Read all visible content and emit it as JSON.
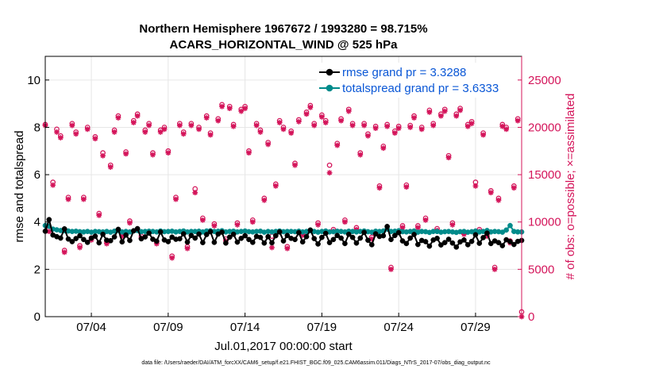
{
  "chart_data": {
    "type": "line",
    "title": "Northern Hemisphere 1967672 / 1993280 = 98.715%",
    "subtitle": "ACARS_HORIZONTAL_WIND @ 525 hPa",
    "xlabel": "Jul.01,2017 00:00:00 start",
    "ylabel": "rmse and totalspread",
    "ylabel_right": "# of obs: o=possible; ×=assimilated",
    "footnote": "data file: /Users/raeder/DAI/ATM_forcXX/CAM6_setup/f.e21.FHIST_BGC.f09_025.CAM6assim.011/Diags_NTrS_2017-07/obs_diag_output.nc",
    "xlim": [
      1,
      32
    ],
    "ylim": [
      0,
      11
    ],
    "ylim_right": [
      0,
      27500
    ],
    "xticks": [
      {
        "x": 4,
        "label": "07/04"
      },
      {
        "x": 9,
        "label": "07/09"
      },
      {
        "x": 14,
        "label": "07/14"
      },
      {
        "x": 19,
        "label": "07/19"
      },
      {
        "x": 24,
        "label": "07/24"
      },
      {
        "x": 29,
        "label": "07/29"
      }
    ],
    "yticks": [
      0,
      2,
      4,
      6,
      8,
      10
    ],
    "yticks_right": [
      0,
      5000,
      10000,
      15000,
      20000,
      25000
    ],
    "colors": {
      "rmse": "#000000",
      "spread": "#008b8b",
      "obs": "#d4145a",
      "legend_text": "#0a57d6",
      "axis": "#000000"
    },
    "legend": [
      {
        "key": "rmse",
        "label": "rmse grand pr = 3.3288"
      },
      {
        "key": "spread",
        "label": "totalspread grand pr = 3.6333"
      }
    ],
    "obs_x": [
      1.0,
      1.25,
      1.5,
      1.75,
      2.0,
      2.25,
      2.5,
      2.75,
      3.0,
      3.25,
      3.5,
      3.75,
      4.0,
      4.25,
      4.5,
      4.75,
      5.0,
      5.25,
      5.5,
      5.75,
      6.0,
      6.25,
      6.5,
      6.75,
      7.0,
      7.25,
      7.5,
      7.75,
      8.0,
      8.25,
      8.5,
      8.75,
      9.0,
      9.25,
      9.5,
      9.75,
      10.0,
      10.25,
      10.5,
      10.75,
      11.0,
      11.25,
      11.5,
      11.75,
      12.0,
      12.25,
      12.5,
      12.75,
      13.0,
      13.25,
      13.5,
      13.75,
      14.0,
      14.25,
      14.5,
      14.75,
      15.0,
      15.25,
      15.5,
      15.75,
      16.0,
      16.25,
      16.5,
      16.75,
      17.0,
      17.25,
      17.5,
      17.75,
      18.0,
      18.25,
      18.5,
      18.75,
      19.0,
      19.25,
      19.5,
      19.75,
      20.0,
      20.25,
      20.5,
      20.75,
      21.0,
      21.25,
      21.5,
      21.75,
      22.0,
      22.25,
      22.5,
      22.75,
      23.0,
      23.25,
      23.5,
      23.75,
      24.0,
      24.25,
      24.5,
      24.75,
      25.0,
      25.25,
      25.5,
      25.75,
      26.0,
      26.25,
      26.5,
      26.75,
      27.0,
      27.25,
      27.5,
      27.75,
      28.0,
      28.25,
      28.5,
      28.75,
      29.0,
      29.25,
      29.5,
      29.75,
      30.0,
      30.25,
      30.5,
      30.75,
      31.0,
      31.25,
      31.5,
      31.75,
      32.0
    ],
    "obs_possible": [
      20300,
      9200,
      14200,
      19800,
      19100,
      7000,
      12600,
      20400,
      19500,
      7500,
      12600,
      20000,
      8300,
      19000,
      10900,
      17300,
      7900,
      16000,
      19700,
      21200,
      8700,
      17400,
      10100,
      20700,
      21400,
      8500,
      19700,
      20400,
      17300,
      7900,
      19700,
      20000,
      17500,
      6400,
      12600,
      20400,
      19500,
      7400,
      20400,
      13500,
      20000,
      10400,
      21200,
      19400,
      9800,
      20900,
      22400,
      8200,
      22200,
      20300,
      9900,
      21900,
      22200,
      17500,
      10200,
      20400,
      19700,
      12500,
      18400,
      8500,
      14000,
      20700,
      20000,
      7400,
      19600,
      16200,
      20800,
      8800,
      21600,
      22300,
      20400,
      9900,
      21300,
      20700,
      16000,
      9200,
      18300,
      20900,
      10200,
      21900,
      20400,
      9400,
      17300,
      20400,
      19300,
      8400,
      20100,
      13800,
      18000,
      20300,
      5200,
      19600,
      20100,
      9600,
      13900,
      20200,
      21200,
      9600,
      20000,
      10400,
      21800,
      20400,
      9300,
      21400,
      21900,
      17000,
      9900,
      21400,
      22000,
      8900,
      20300,
      20600,
      14200,
      9200,
      19400,
      8700,
      13300,
      5200,
      12500,
      20300,
      20000,
      8000,
      13800,
      20900,
      500
    ],
    "obs_assimilated": [
      20200,
      9000,
      13900,
      19500,
      18900,
      6800,
      12400,
      20200,
      19300,
      7300,
      12400,
      19800,
      8100,
      18800,
      10700,
      17000,
      7700,
      15800,
      19500,
      21000,
      8500,
      17200,
      9900,
      20500,
      21200,
      8300,
      19500,
      20200,
      17100,
      7700,
      19500,
      19800,
      17300,
      6200,
      12400,
      20200,
      19300,
      7200,
      20200,
      13100,
      19800,
      10200,
      21000,
      19200,
      9600,
      20700,
      22200,
      8000,
      22000,
      20100,
      9700,
      21700,
      22000,
      17300,
      10000,
      20200,
      19500,
      12300,
      18200,
      7300,
      13800,
      20500,
      19800,
      7200,
      19400,
      16000,
      20600,
      8600,
      21400,
      22100,
      20200,
      9700,
      21100,
      20500,
      15200,
      9000,
      18100,
      20700,
      10000,
      21700,
      20200,
      9200,
      17100,
      20200,
      19100,
      8200,
      19900,
      13600,
      17800,
      20100,
      5000,
      19400,
      19900,
      9400,
      13700,
      20000,
      21000,
      9400,
      19800,
      10200,
      21600,
      20200,
      9100,
      21200,
      21700,
      16800,
      9700,
      21200,
      21800,
      8700,
      20100,
      20400,
      13800,
      9000,
      19200,
      8500,
      13100,
      5000,
      12300,
      20100,
      19800,
      7800,
      13600,
      20700,
      0
    ],
    "rmse": [
      3.61,
      4.1,
      3.45,
      3.38,
      3.32,
      3.71,
      3.28,
      3.17,
      3.3,
      3.42,
      3.26,
      3.14,
      3.32,
      3.4,
      3.12,
      3.48,
      3.23,
      3.21,
      3.37,
      3.69,
      3.16,
      3.45,
      3.22,
      3.63,
      3.72,
      3.29,
      3.37,
      3.53,
      3.27,
      3.19,
      3.58,
      3.24,
      3.17,
      3.36,
      3.27,
      3.29,
      3.5,
      3.15,
      3.43,
      3.32,
      3.49,
      3.13,
      3.47,
      3.59,
      3.14,
      3.49,
      3.57,
      3.11,
      3.36,
      3.48,
      3.15,
      3.31,
      3.42,
      3.26,
      3.14,
      3.39,
      3.35,
      3.11,
      3.38,
      3.12,
      3.42,
      3.58,
      3.2,
      3.43,
      3.31,
      3.26,
      3.55,
      3.16,
      3.38,
      3.66,
      3.3,
      3.07,
      3.35,
      3.52,
      3.13,
      3.26,
      3.43,
      3.32,
      3.09,
      3.48,
      3.35,
      3.11,
      3.32,
      3.56,
      3.23,
      3.04,
      3.5,
      3.39,
      3.42,
      3.81,
      3.26,
      3.43,
      3.55,
      3.2,
      3.09,
      3.32,
      3.47,
      3.05,
      3.22,
      3.17,
      2.98,
      3.24,
      3.31,
      3.03,
      3.13,
      3.27,
      3.11,
      2.94,
      3.16,
      3.24,
      3.04,
      3.18,
      3.46,
      3.1,
      3.34,
      3.53,
      3.09,
      3.2,
      3.13,
      3.0,
      3.25,
      3.17,
      3.05,
      3.18,
      3.22
    ],
    "spread": [
      3.85,
      3.82,
      3.7,
      3.67,
      3.64,
      3.63,
      3.62,
      3.6,
      3.61,
      3.59,
      3.58,
      3.6,
      3.57,
      3.6,
      3.59,
      3.58,
      3.6,
      3.57,
      3.61,
      3.64,
      3.58,
      3.6,
      3.58,
      3.62,
      3.64,
      3.59,
      3.6,
      3.61,
      3.6,
      3.58,
      3.62,
      3.59,
      3.6,
      3.61,
      3.58,
      3.6,
      3.62,
      3.58,
      3.6,
      3.6,
      3.61,
      3.58,
      3.62,
      3.63,
      3.6,
      3.61,
      3.63,
      3.58,
      3.6,
      3.61,
      3.58,
      3.6,
      3.62,
      3.59,
      3.58,
      3.6,
      3.61,
      3.57,
      3.6,
      3.58,
      3.6,
      3.62,
      3.59,
      3.6,
      3.6,
      3.59,
      3.61,
      3.58,
      3.6,
      3.63,
      3.6,
      3.57,
      3.6,
      3.62,
      3.58,
      3.59,
      3.61,
      3.6,
      3.58,
      3.61,
      3.6,
      3.58,
      3.6,
      3.62,
      3.59,
      3.57,
      3.61,
      3.6,
      3.62,
      3.7,
      3.6,
      3.61,
      3.63,
      3.59,
      3.58,
      3.6,
      3.62,
      3.57,
      3.6,
      3.59,
      3.56,
      3.6,
      3.6,
      3.57,
      3.59,
      3.6,
      3.58,
      3.56,
      3.59,
      3.6,
      3.57,
      3.59,
      3.62,
      3.58,
      3.6,
      3.64,
      3.58,
      3.6,
      3.59,
      3.57,
      3.66,
      3.85,
      3.6,
      3.58,
      3.58
    ]
  }
}
